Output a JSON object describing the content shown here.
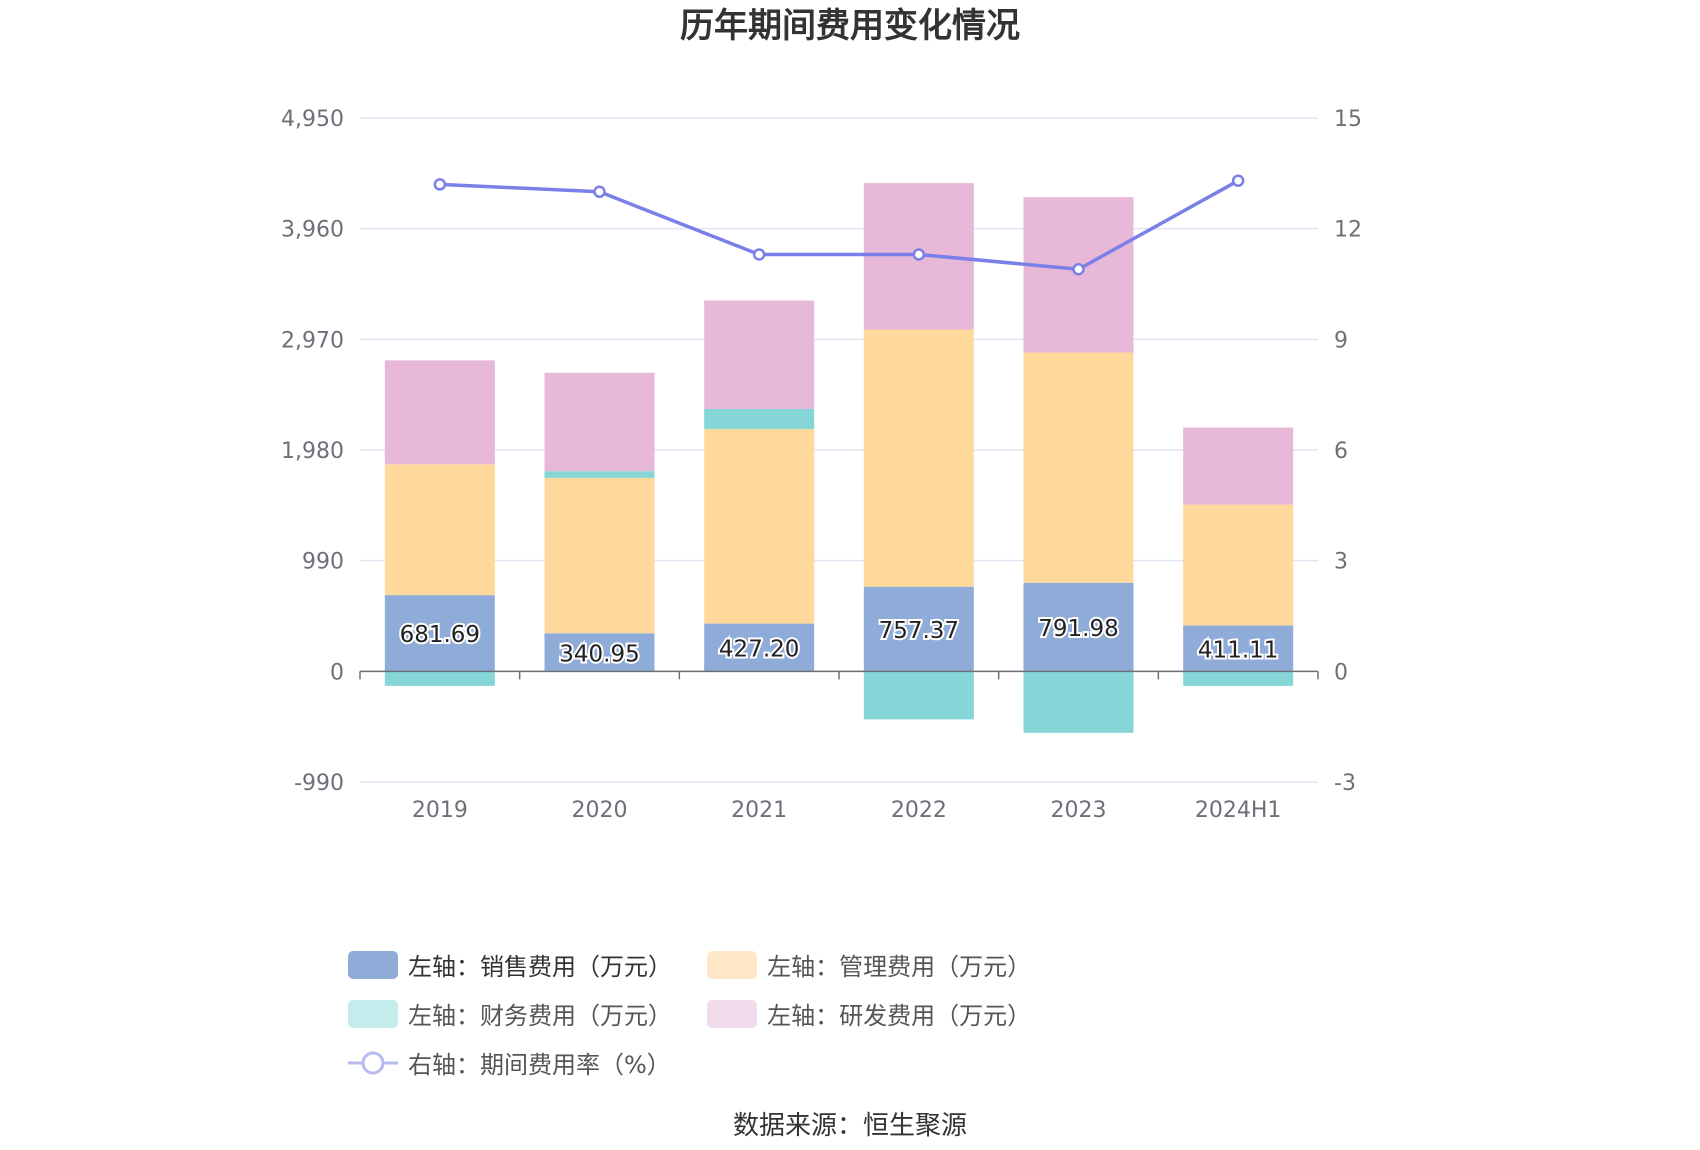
{
  "chart_data": {
    "type": "bar",
    "title": "历年期间费用变化情况",
    "categories": [
      "2019",
      "2020",
      "2021",
      "2022",
      "2023",
      "2024H1"
    ],
    "stacked": true,
    "left_axis": {
      "ticks": [
        "-990",
        "0",
        "990",
        "1,980",
        "2,970",
        "3,960",
        "4,950"
      ],
      "ylim": [
        -990,
        4950
      ]
    },
    "right_axis": {
      "ticks": [
        "-3",
        "0",
        "3",
        "6",
        "9",
        "12",
        "15"
      ],
      "ylim": [
        -3,
        15
      ]
    },
    "series": [
      {
        "name": "左轴：销售费用（万元）",
        "axis": "left",
        "type": "bar",
        "color": "#8facd8",
        "values": [
          681.69,
          340.95,
          427.2,
          757.37,
          791.98,
          411.11
        ],
        "labels": [
          "681.69",
          "340.95",
          "427.20",
          "757.37",
          "791.98",
          "411.11"
        ]
      },
      {
        "name": "左轴：管理费用（万元）",
        "axis": "left",
        "type": "bar",
        "color": "#ffd99b",
        "values": [
          1170,
          1390,
          1740,
          2300,
          2060,
          1080
        ]
      },
      {
        "name": "左轴：财务费用（万元）",
        "axis": "left",
        "type": "bar",
        "color": "#86d6d8",
        "values": [
          -130,
          60,
          180,
          -430,
          -550,
          -130
        ]
      },
      {
        "name": "左轴：研发费用（万元）",
        "axis": "left",
        "type": "bar",
        "color": "#e8b8d8",
        "values": [
          930,
          880,
          970,
          1310,
          1390,
          690
        ]
      },
      {
        "name": "右轴：期间费用率（%）",
        "axis": "right",
        "type": "line",
        "color": "#7b7fe8",
        "values": [
          13.2,
          13.0,
          11.3,
          11.3,
          10.9,
          13.3
        ]
      }
    ]
  },
  "source": "数据来源：恒生聚源"
}
